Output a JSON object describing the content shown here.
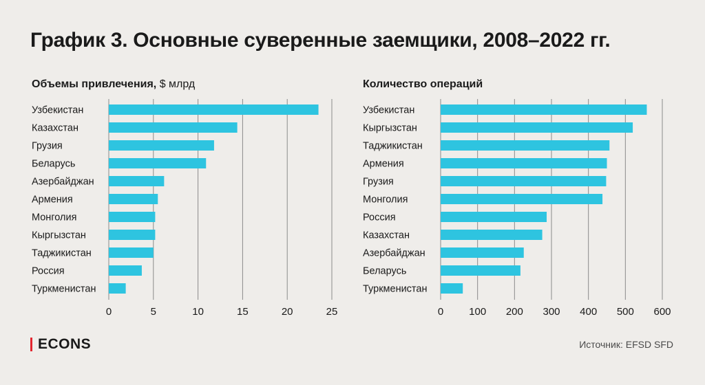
{
  "title": "График 3. Основные суверенные заемщики, 2008–2022 гг.",
  "colors": {
    "bar": "#2ec4e0",
    "grid": "#8a8a8a",
    "background": "#efedea",
    "accent": "#e3262f"
  },
  "chart_data": [
    {
      "type": "bar",
      "orientation": "horizontal",
      "title": "Объемы привлечения,",
      "title_unit": "$ млрд",
      "categories": [
        "Узбекистан",
        "Казахстан",
        "Грузия",
        "Беларусь",
        "Азербайджан",
        "Армения",
        "Монголия",
        "Кыргызстан",
        "Таджикистан",
        "Россия",
        "Туркменистан"
      ],
      "values": [
        23.5,
        14.4,
        11.8,
        10.9,
        6.2,
        5.5,
        5.2,
        5.2,
        5.0,
        3.7,
        1.9
      ],
      "xlim": [
        0,
        25
      ],
      "ticks": [
        0,
        5,
        10,
        15,
        20,
        25
      ],
      "grid": true
    },
    {
      "type": "bar",
      "orientation": "horizontal",
      "title": "Количество операций",
      "title_unit": "",
      "categories": [
        "Узбекистан",
        "Кыргызстан",
        "Таджикистан",
        "Армения",
        "Грузия",
        "Монголия",
        "Россия",
        "Казахстан",
        "Азербайджан",
        "Беларусь",
        "Туркменистан"
      ],
      "values": [
        558,
        520,
        457,
        450,
        448,
        438,
        287,
        275,
        225,
        216,
        60
      ],
      "xlim": [
        0,
        600
      ],
      "ticks": [
        0,
        100,
        200,
        300,
        400,
        500,
        600
      ],
      "grid": true
    }
  ],
  "footer": {
    "logo": "ECONS",
    "source": "Источник: EFSD SFD"
  }
}
